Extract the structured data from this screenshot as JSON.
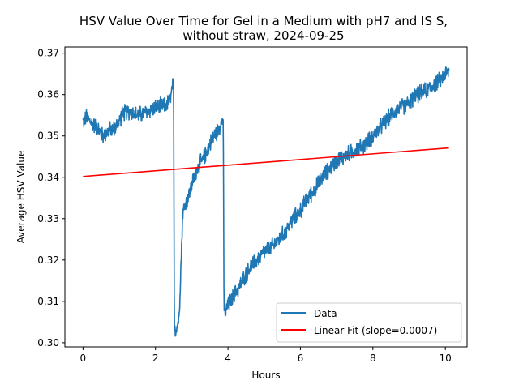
{
  "chart_data": {
    "type": "line",
    "title_line1": "HSV Value Over Time for Gel in a Medium with pH7 and IS S,",
    "title_line2": "without straw, 2024-09-25",
    "xlabel": "Hours",
    "ylabel": "Average HSV Value",
    "xlim": [
      -0.5,
      10.6
    ],
    "ylim": [
      0.299,
      0.3715
    ],
    "xticks": [
      0,
      2,
      4,
      6,
      8,
      10
    ],
    "yticks": [
      0.3,
      0.31,
      0.32,
      0.33,
      0.34,
      0.35,
      0.36,
      0.37
    ],
    "ytick_labels": [
      "0.30",
      "0.31",
      "0.32",
      "0.33",
      "0.34",
      "0.35",
      "0.36",
      "0.37"
    ],
    "legend_position": "lower-right",
    "grid": false,
    "series": [
      {
        "name": "Data",
        "color": "#1f77b4",
        "noise": 0.0016,
        "x": [
          0.0,
          0.1,
          0.25,
          0.4,
          0.5,
          0.55,
          0.6,
          0.75,
          0.9,
          1.1,
          1.3,
          1.5,
          1.7,
          1.9,
          2.1,
          2.3,
          2.42,
          2.47,
          2.5,
          2.52,
          2.55,
          2.6,
          2.65,
          2.7,
          2.75,
          2.8,
          2.9,
          3.0,
          3.1,
          3.2,
          3.3,
          3.4,
          3.5,
          3.6,
          3.7,
          3.8,
          3.85,
          3.87,
          3.89,
          3.92,
          4.0,
          4.2,
          4.4,
          4.6,
          4.8,
          5.0,
          5.2,
          5.4,
          5.6,
          5.8,
          6.0,
          6.2,
          6.4,
          6.6,
          6.8,
          7.0,
          7.2,
          7.4,
          7.6,
          7.8,
          8.0,
          8.2,
          8.4,
          8.6,
          8.8,
          9.0,
          9.2,
          9.4,
          9.6,
          9.8,
          10.0,
          10.1
        ],
        "y": [
          0.3535,
          0.3545,
          0.353,
          0.352,
          0.3505,
          0.35,
          0.3505,
          0.3515,
          0.352,
          0.3555,
          0.356,
          0.355,
          0.3555,
          0.3565,
          0.357,
          0.3575,
          0.359,
          0.362,
          0.362,
          0.305,
          0.303,
          0.304,
          0.306,
          0.318,
          0.331,
          0.333,
          0.335,
          0.338,
          0.341,
          0.343,
          0.344,
          0.346,
          0.348,
          0.35,
          0.351,
          0.353,
          0.354,
          0.3545,
          0.309,
          0.307,
          0.309,
          0.312,
          0.315,
          0.318,
          0.32,
          0.322,
          0.323,
          0.325,
          0.327,
          0.33,
          0.332,
          0.335,
          0.337,
          0.34,
          0.342,
          0.344,
          0.345,
          0.346,
          0.347,
          0.348,
          0.35,
          0.352,
          0.354,
          0.356,
          0.357,
          0.358,
          0.36,
          0.3605,
          0.362,
          0.363,
          0.365,
          0.3655
        ]
      },
      {
        "name": "Linear Fit (slope=0.0007)",
        "color": "#ff0000",
        "x": [
          0.0,
          10.1
        ],
        "y": [
          0.3402,
          0.3471
        ]
      }
    ]
  }
}
